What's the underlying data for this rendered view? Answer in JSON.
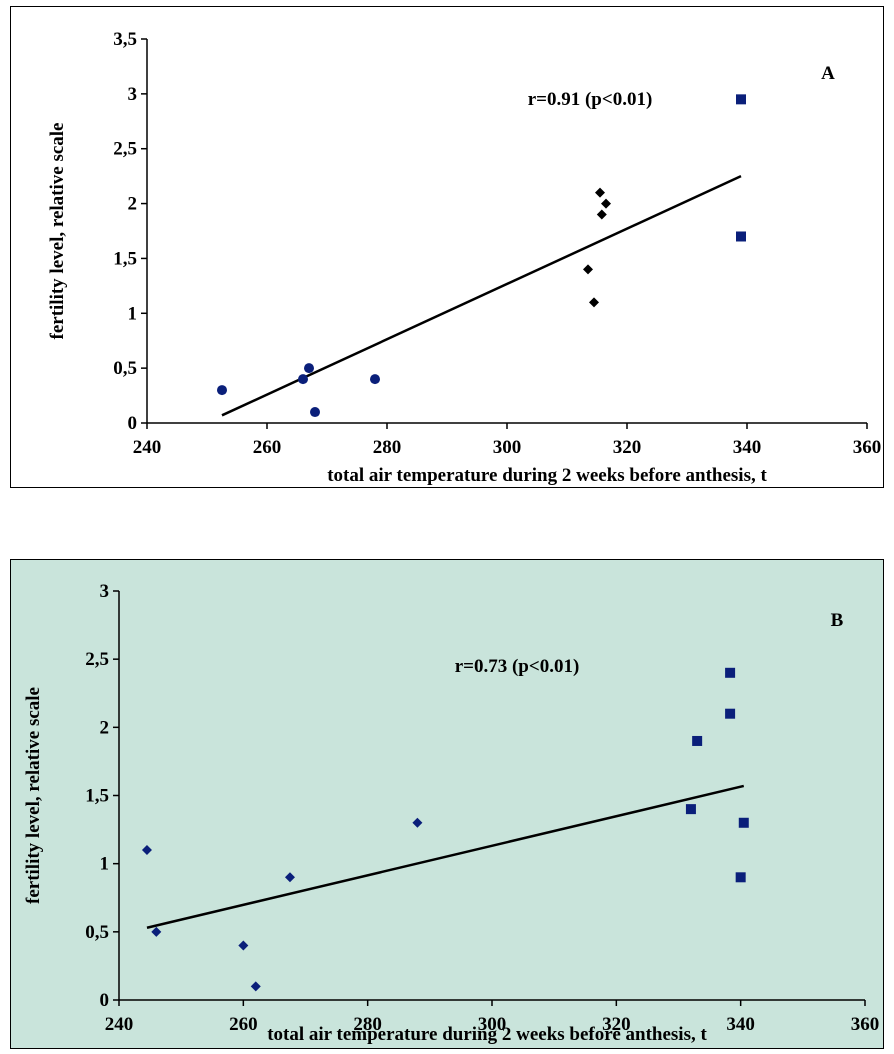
{
  "chart_data": [
    {
      "type": "scatter",
      "panel_label": "A",
      "annotation": "r=0.91 (p<0.01)",
      "xlabel": "total air temperature during 2 weeks before anthesis, t",
      "ylabel": "fertility level, relative scale",
      "xlim": [
        240,
        360
      ],
      "ylim": [
        0,
        3.5
      ],
      "x_ticks": [
        "240",
        "260",
        "280",
        "300",
        "320",
        "340",
        "360"
      ],
      "y_ticks": [
        "0",
        "0,5",
        "1",
        "1,5",
        "2",
        "2,5",
        "3",
        "3,5"
      ],
      "grid": false,
      "legend": "none",
      "background": "#ffffff",
      "series": [
        {
          "marker": "circle",
          "color": "#0a1f7a",
          "points": [
            [
              252.5,
              0.3
            ],
            [
              266,
              0.4
            ],
            [
              267,
              0.5
            ],
            [
              268,
              0.1
            ],
            [
              278,
              0.4
            ]
          ]
        },
        {
          "marker": "diamond",
          "color": "#000000",
          "points": [
            [
              313.5,
              1.4
            ],
            [
              314.5,
              1.1
            ],
            [
              315.5,
              2.1
            ],
            [
              315.8,
              1.9
            ],
            [
              316.5,
              2.0
            ]
          ]
        },
        {
          "marker": "square",
          "color": "#0a1f7a",
          "points": [
            [
              339,
              2.95
            ],
            [
              339,
              1.7
            ]
          ]
        }
      ],
      "trendline": {
        "x": [
          252.5,
          339
        ],
        "y": [
          0.07,
          2.25
        ]
      }
    },
    {
      "type": "scatter",
      "panel_label": "B",
      "annotation": "r=0.73 (p<0.01)",
      "xlabel": "total air temperature during 2 weeks before anthesis, t",
      "ylabel": "fertility level, relative scale",
      "xlim": [
        240,
        360
      ],
      "ylim": [
        0,
        3
      ],
      "x_ticks": [
        "240",
        "260",
        "280",
        "300",
        "320",
        "340",
        "360"
      ],
      "y_ticks": [
        "0",
        "0,5",
        "1",
        "1,5",
        "2",
        "2,5",
        "3"
      ],
      "grid": false,
      "legend": "none",
      "background": "#c9e4db",
      "series": [
        {
          "marker": "diamond",
          "color": "#0a1f7a",
          "points": [
            [
              244.5,
              1.1
            ],
            [
              246,
              0.5
            ],
            [
              260,
              0.4
            ],
            [
              262,
              0.1
            ],
            [
              267.5,
              0.9
            ],
            [
              288,
              1.3
            ]
          ]
        },
        {
          "marker": "square",
          "color": "#0a1f7a",
          "points": [
            [
              332,
              1.4
            ],
            [
              333,
              1.9
            ],
            [
              338.3,
              2.4
            ],
            [
              338.3,
              2.1
            ],
            [
              340,
              0.9
            ],
            [
              340.5,
              1.3
            ]
          ]
        }
      ],
      "trendline": {
        "x": [
          244.5,
          340.5
        ],
        "y": [
          0.53,
          1.57
        ]
      }
    }
  ]
}
